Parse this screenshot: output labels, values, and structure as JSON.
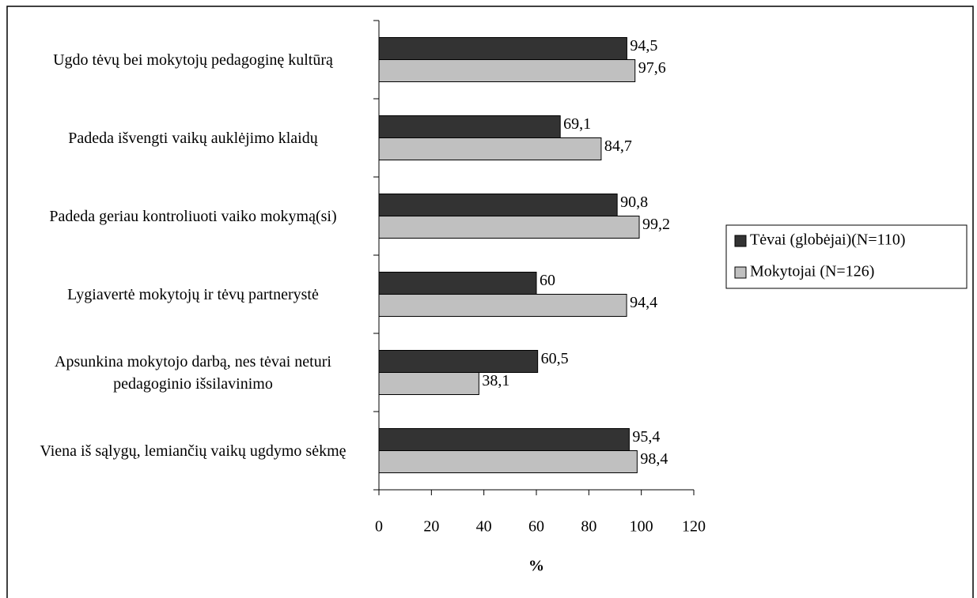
{
  "chart_data": {
    "type": "bar",
    "orientation": "horizontal",
    "categories": [
      "Ugdo tėvų bei mokytojų pedagoginę kultūrą",
      "Padeda išvengti vaikų auklėjimo klaidų",
      "Padeda geriau kontroliuoti vaiko mokymą(si)",
      "Lygiavertė mokytojų ir tėvų partnerystė",
      "Apsunkina mokytojo darbą, nes tėvai neturi pedagoginio išsilavinimo",
      "Viena iš sąlygų, lemiančių vaikų ugdymo sėkmę"
    ],
    "series": [
      {
        "name": "Tėvai (globėjai)(N=110)",
        "color": "#333333",
        "values": [
          94.5,
          69.1,
          90.8,
          60,
          60.5,
          95.4
        ],
        "value_labels": [
          "94,5",
          "69,1",
          "90,8",
          "60",
          "60,5",
          "95,4"
        ]
      },
      {
        "name": "Mokytojai (N=126)",
        "color": "#c0c0c0",
        "values": [
          97.6,
          84.7,
          99.2,
          94.4,
          38.1,
          98.4
        ],
        "value_labels": [
          "97,6",
          "84,7",
          "99,2",
          "94,4",
          "38,1",
          "98,4"
        ]
      }
    ],
    "xlabel": "%",
    "xlim": [
      0,
      120
    ],
    "xticks": [
      0,
      20,
      40,
      60,
      80,
      100,
      120
    ],
    "legend": "right"
  }
}
